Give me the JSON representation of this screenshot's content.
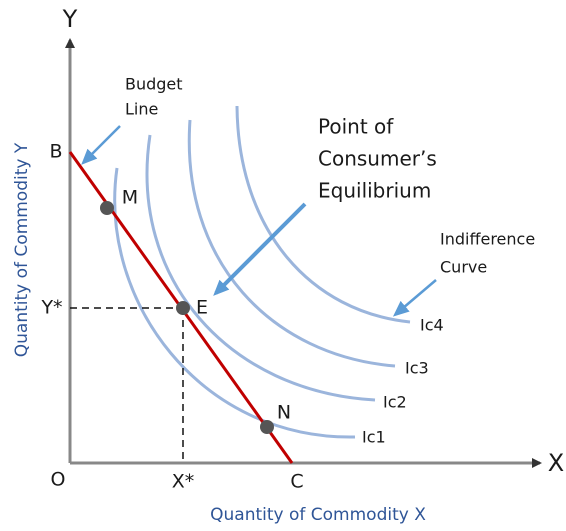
{
  "axes": {
    "y_letter": "Y",
    "x_letter": "X",
    "origin": "O",
    "y_title": "Quantity of Commodity Y",
    "x_title": "Quantity of Commodity X"
  },
  "points": {
    "b": "B",
    "c": "C",
    "m": "M",
    "e": "E",
    "n": "N",
    "y_star": "Y*",
    "x_star": "X*"
  },
  "labels": {
    "budget_line": [
      "Budget",
      "Line"
    ],
    "equilibrium": [
      "Point of",
      "Consumer’s",
      "Equilibrium"
    ],
    "indifference_curve": [
      "Indifference",
      "Curve"
    ]
  },
  "curves": [
    "Ic1",
    "Ic2",
    "Ic3",
    "Ic4"
  ]
}
